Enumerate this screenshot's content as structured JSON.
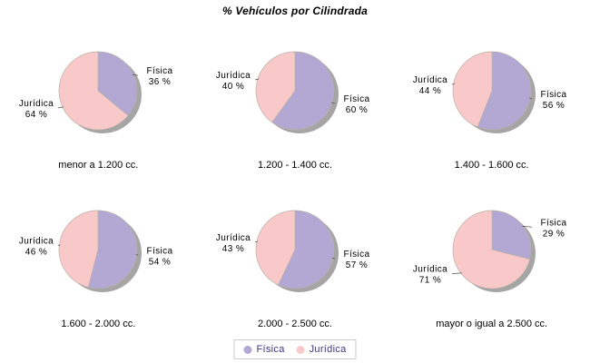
{
  "title": "% Vehículos por Cilindrada",
  "percent_suffix": " %",
  "colors": {
    "fisica": "#b2a8d3",
    "juridica": "#f9c9ca",
    "shadow": "#a5a5a5",
    "outline": "#b9b0a6",
    "leader_line": "#555555",
    "legend_text": "#3f3388",
    "legend_border": "#cccccc"
  },
  "legend": {
    "position": "bottom-center",
    "items": [
      {
        "label": "Física",
        "color": "#b2a8d3"
      },
      {
        "label": "Jurídica",
        "color": "#f9c9ca"
      }
    ]
  },
  "chart_data": [
    {
      "type": "pie",
      "title": "menor a 1.200 cc.",
      "labels": [
        "Física",
        "Jurídica"
      ],
      "values": [
        36,
        64
      ],
      "unit": "%",
      "start_angle": "top",
      "direction": "clockwise"
    },
    {
      "type": "pie",
      "title": "1.200 - 1.400 cc.",
      "labels": [
        "Física",
        "Jurídica"
      ],
      "values": [
        60,
        40
      ],
      "unit": "%",
      "start_angle": "top",
      "direction": "clockwise"
    },
    {
      "type": "pie",
      "title": "1.400 - 1.600 cc.",
      "labels": [
        "Física",
        "Jurídica"
      ],
      "values": [
        56,
        44
      ],
      "unit": "%",
      "start_angle": "top",
      "direction": "clockwise"
    },
    {
      "type": "pie",
      "title": "1.600 - 2.000 cc.",
      "labels": [
        "Física",
        "Jurídica"
      ],
      "values": [
        54,
        46
      ],
      "unit": "%",
      "start_angle": "top",
      "direction": "clockwise"
    },
    {
      "type": "pie",
      "title": "2.000 - 2.500 cc.",
      "labels": [
        "Física",
        "Jurídica"
      ],
      "values": [
        57,
        43
      ],
      "unit": "%",
      "start_angle": "top",
      "direction": "clockwise"
    },
    {
      "type": "pie",
      "title": "mayor o igual a 2.500 cc.",
      "labels": [
        "Física",
        "Jurídica"
      ],
      "values": [
        29,
        71
      ],
      "unit": "%",
      "start_angle": "top",
      "direction": "clockwise"
    }
  ]
}
